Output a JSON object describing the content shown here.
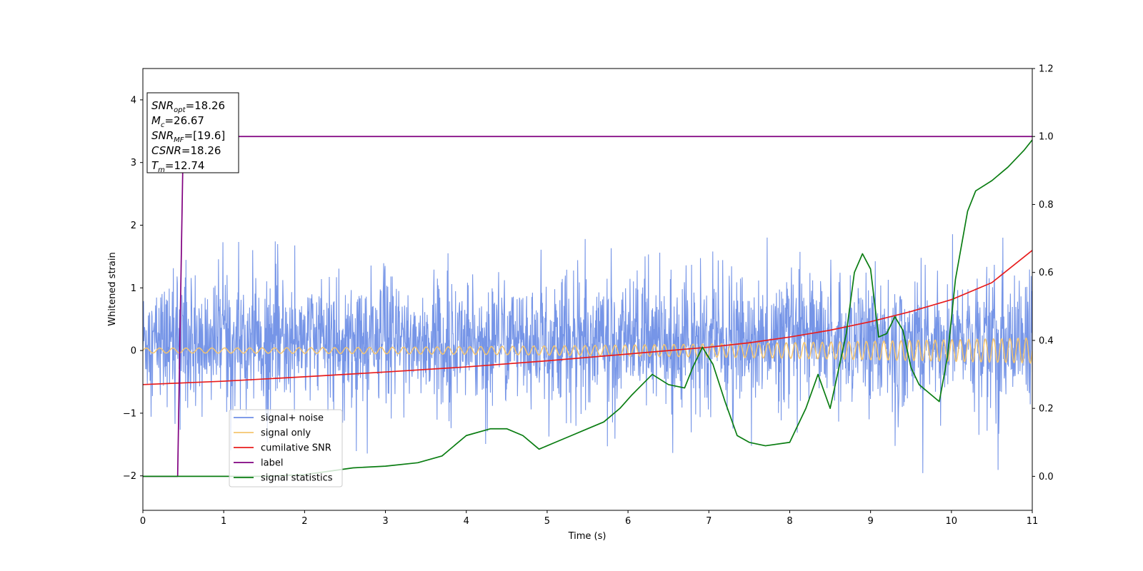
{
  "chart_data": {
    "type": "line",
    "xlabel": "Time (s)",
    "ylabel": "Whitened strain",
    "xlim": [
      0,
      11
    ],
    "ylim": [
      -2.55,
      4.5
    ],
    "y2lim": [
      -0.1,
      1.2
    ],
    "x_ticks": [
      0,
      1,
      2,
      3,
      4,
      5,
      6,
      7,
      8,
      9,
      10,
      11
    ],
    "y_ticks": [
      -2,
      -1,
      0,
      1,
      2,
      3,
      4
    ],
    "y2_ticks": [
      0.0,
      0.2,
      0.4,
      0.6,
      0.8,
      1.0,
      1.2
    ],
    "grid": false,
    "legend_position": "lower-left",
    "annotation": {
      "lines": [
        {
          "base": "SNR",
          "sub": "opt",
          "value": "=18.26"
        },
        {
          "base": "M",
          "sub": "c",
          "value": "=26.67"
        },
        {
          "base": "SNR",
          "sub": "MF",
          "value": "=[19.6]"
        },
        {
          "base": "CSNR",
          "sub": "",
          "value": "=18.26"
        },
        {
          "base": "T",
          "sub": "m",
          "value": "=12.74"
        }
      ]
    },
    "series": [
      {
        "name": "signal+ noise",
        "axis": "left",
        "color": "#6f8fe6",
        "kind": "noise",
        "noise_envelope": {
          "lower": -1.2,
          "upper": 1.5
        },
        "extremes": {
          "max": 1.88,
          "min": -2.22
        }
      },
      {
        "name": "signal only",
        "axis": "left",
        "color": "#f5c56f",
        "kind": "chirp",
        "amplitude_start": 0.04,
        "amplitude_end": 0.2,
        "freq_start_hz": 6,
        "freq_end_hz": 10
      },
      {
        "name": "cumilative SNR",
        "axis": "right",
        "color": "#e81d1d",
        "x": [
          0,
          1,
          2,
          3,
          4,
          5,
          6,
          7,
          7.5,
          8,
          8.5,
          9,
          9.5,
          10,
          10.5,
          11
        ],
        "y": [
          0.27,
          0.28,
          0.293,
          0.307,
          0.322,
          0.34,
          0.36,
          0.38,
          0.393,
          0.41,
          0.43,
          0.455,
          0.485,
          0.52,
          0.57,
          0.665
        ]
      },
      {
        "name": "label",
        "axis": "right",
        "color": "#800080",
        "x": [
          0,
          0.43,
          0.5,
          11
        ],
        "y": [
          0.0,
          0.0,
          1.0,
          1.0
        ]
      },
      {
        "name": "signal statistics",
        "axis": "right",
        "color": "#0a7d12",
        "x": [
          0,
          1,
          1.5,
          2,
          2.3,
          2.6,
          3,
          3.4,
          3.7,
          4,
          4.3,
          4.5,
          4.7,
          4.9,
          5.1,
          5.3,
          5.5,
          5.7,
          5.9,
          6.05,
          6.3,
          6.5,
          6.7,
          6.8,
          6.92,
          7.05,
          7.2,
          7.35,
          7.5,
          7.7,
          8,
          8.2,
          8.35,
          8.5,
          8.7,
          8.8,
          8.9,
          9.0,
          9.1,
          9.2,
          9.3,
          9.4,
          9.5,
          9.6,
          9.7,
          9.85,
          9.95,
          10.05,
          10.2,
          10.3,
          10.5,
          10.7,
          10.9,
          11
        ],
        "y": [
          0.0,
          0.0,
          0.0,
          0.005,
          0.015,
          0.025,
          0.03,
          0.04,
          0.06,
          0.12,
          0.14,
          0.14,
          0.12,
          0.08,
          0.1,
          0.12,
          0.14,
          0.16,
          0.2,
          0.24,
          0.3,
          0.27,
          0.26,
          0.32,
          0.38,
          0.33,
          0.22,
          0.12,
          0.1,
          0.09,
          0.1,
          0.2,
          0.3,
          0.2,
          0.42,
          0.6,
          0.655,
          0.61,
          0.41,
          0.42,
          0.47,
          0.43,
          0.32,
          0.27,
          0.25,
          0.22,
          0.35,
          0.58,
          0.78,
          0.84,
          0.87,
          0.91,
          0.96,
          0.99
        ]
      }
    ]
  }
}
